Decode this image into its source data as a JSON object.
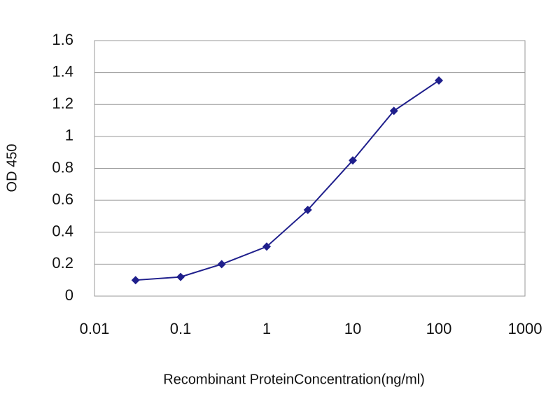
{
  "chart_data": {
    "type": "line",
    "x_label": "Recombinant ProteinConcentration(ng/ml)",
    "y_label": "OD 450",
    "series": [
      {
        "color": "#1f1f8c",
        "x": [
          0.03,
          0.1,
          0.3,
          1,
          3,
          10,
          30,
          100
        ],
        "values": [
          0.1,
          0.12,
          0.2,
          0.31,
          0.54,
          0.85,
          1.16,
          1.35
        ]
      }
    ],
    "xlog": true,
    "xlim": [
      0.01,
      1000
    ],
    "xticks": [
      0.01,
      0.1,
      1,
      10,
      100,
      1000
    ],
    "ylim": [
      0,
      1.6
    ],
    "yticks": [
      0,
      0.2,
      0.4,
      0.6,
      0.8,
      1,
      1.2,
      1.4,
      1.6
    ],
    "grid": true
  }
}
